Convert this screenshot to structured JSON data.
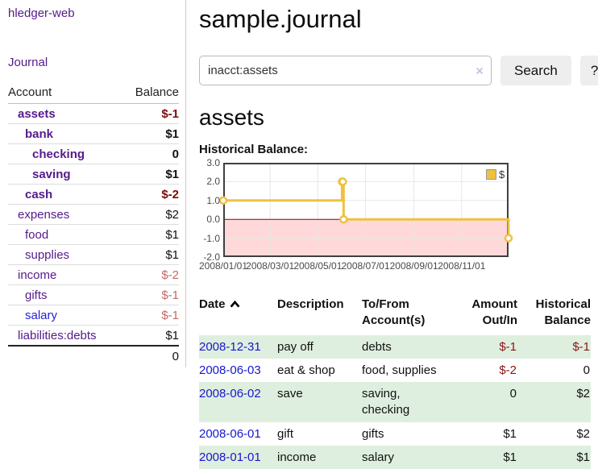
{
  "app": {
    "title": "hledger-web"
  },
  "colors": {
    "purple": "#551a8b",
    "link_blue": "#2323d2",
    "date_blue": "#1717cd",
    "neg_strong": "#7b0b0b",
    "neg_pale": "#c46868",
    "register_neg": "#8b1515",
    "row_green": "#dfefdf",
    "chart_line": "#edc240",
    "chart_neg_fill": "#ffd9d9",
    "zero_line": "#8b0000",
    "grid": "#e7e7e7",
    "chart_border": "#3f3f3f",
    "button_bg": "#eeeeee",
    "input_border": "#b9b9b9",
    "clear_icon": "#cdc2e2",
    "axis_text": "#4a4a4a"
  },
  "sidebar": {
    "nav": [
      {
        "label": "Journal"
      }
    ],
    "accounts_table": {
      "headers": [
        "Account",
        "Balance"
      ],
      "rows": [
        {
          "name": "assets",
          "depth": 0,
          "bold": true,
          "balance": "$-1",
          "negative": true
        },
        {
          "name": "bank",
          "depth": 1,
          "bold": true,
          "balance": "$1",
          "negative": false
        },
        {
          "name": "checking",
          "depth": 2,
          "bold": true,
          "balance": "0",
          "negative": false
        },
        {
          "name": "saving",
          "depth": 2,
          "bold": true,
          "balance": "$1",
          "negative": false
        },
        {
          "name": "cash",
          "depth": 1,
          "bold": true,
          "balance": "$-2",
          "negative": true
        },
        {
          "name": "expenses",
          "depth": 0,
          "bold": false,
          "balance": "$2",
          "negative": false
        },
        {
          "name": "food",
          "depth": 1,
          "bold": false,
          "balance": "$1",
          "negative": false
        },
        {
          "name": "supplies",
          "depth": 1,
          "bold": false,
          "balance": "$1",
          "negative": false
        },
        {
          "name": "income",
          "depth": 0,
          "bold": false,
          "balance": "$-2",
          "negative": true
        },
        {
          "name": "gifts",
          "depth": 1,
          "bold": false,
          "balance": "$-1",
          "negative": true
        },
        {
          "name": "salary",
          "depth": 1,
          "bold": false,
          "balance": "$-1",
          "negative": true,
          "blue": true
        },
        {
          "name": "liabilities:debts",
          "depth": 0,
          "bold": false,
          "balance": "$1",
          "negative": false
        }
      ],
      "total": "0"
    }
  },
  "header": {
    "title": "sample.journal"
  },
  "search": {
    "value": "inacct:assets",
    "clear_icon": "×",
    "button_label": "Search",
    "help_label": "?"
  },
  "account_page": {
    "heading": "assets",
    "chart_label": "Historical Balance:"
  },
  "chart_data": {
    "type": "line",
    "step": true,
    "title": "Historical Balance:",
    "series": [
      {
        "name": "$",
        "color": "#edc240",
        "points": [
          {
            "date": "2008-01-01",
            "day": 0,
            "value": 1
          },
          {
            "date": "2008-06-01",
            "day": 152,
            "value": 2
          },
          {
            "date": "2008-06-02",
            "day": 153,
            "value": 2
          },
          {
            "date": "2008-06-03",
            "day": 154,
            "value": 0
          },
          {
            "date": "2008-12-31",
            "day": 365,
            "value": -1
          }
        ]
      }
    ],
    "x_ticks": {
      "labels": [
        "2008/01/01",
        "2008/03/01",
        "2008/05/01",
        "2008/07/01",
        "2008/09/01",
        "2008/11/01"
      ],
      "days": [
        0,
        60,
        121,
        182,
        244,
        305
      ]
    },
    "y_ticks": {
      "labels": [
        "3.0",
        "2.0",
        "1.0",
        "0.0",
        "-1.0",
        "-2.0"
      ],
      "values": [
        3,
        2,
        1,
        0,
        -1,
        -2
      ]
    },
    "ylim": [
      -2,
      3
    ],
    "xlim_days": [
      0,
      365
    ],
    "grid": true,
    "legend": {
      "position": "top-right",
      "label": "$",
      "swatch_color": "#edc240"
    },
    "negative_region_color": "#ffd9d9",
    "zero_line_color": "#8b0000"
  },
  "register_table": {
    "headers": [
      "Date",
      "Description",
      "To/From Account(s)",
      "Amount Out/In",
      "Historical Balance"
    ],
    "sort": {
      "column": "Date",
      "direction": "ascending"
    },
    "rows": [
      {
        "date": "2008-12-31",
        "description": "pay off",
        "accounts": "debts",
        "amount": "$-1",
        "balance": "$-1",
        "amount_negative": true,
        "balance_negative": true
      },
      {
        "date": "2008-06-03",
        "description": "eat & shop",
        "accounts": "food, supplies",
        "amount": "$-2",
        "balance": "0",
        "amount_negative": true,
        "balance_negative": false
      },
      {
        "date": "2008-06-02",
        "description": "save",
        "accounts": "saving, checking",
        "amount": "0",
        "balance": "$2",
        "amount_negative": false,
        "balance_negative": false
      },
      {
        "date": "2008-06-01",
        "description": "gift",
        "accounts": "gifts",
        "amount": "$1",
        "balance": "$2",
        "amount_negative": false,
        "balance_negative": false
      },
      {
        "date": "2008-01-01",
        "description": "income",
        "accounts": "salary",
        "amount": "$1",
        "balance": "$1",
        "amount_negative": false,
        "balance_negative": false
      }
    ]
  }
}
